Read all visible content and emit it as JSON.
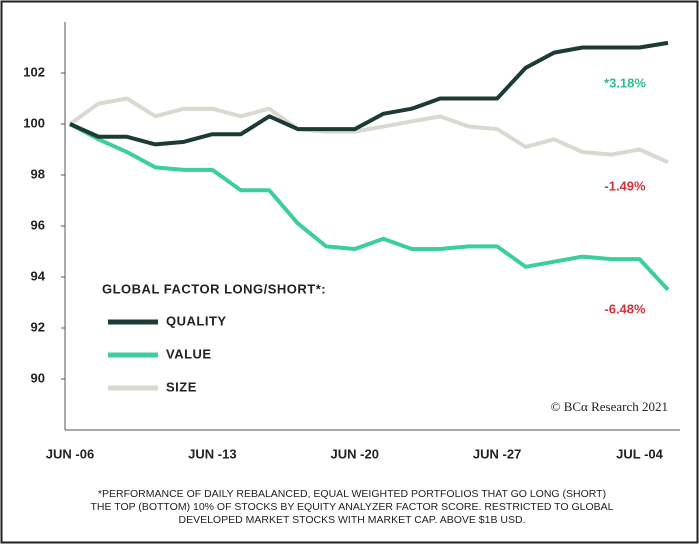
{
  "chart_data": {
    "type": "line",
    "categories": [
      "JUN -06",
      null,
      null,
      null,
      null,
      "JUN -13",
      null,
      null,
      null,
      null,
      "JUN -20",
      null,
      null,
      null,
      null,
      "JUN -27",
      null,
      null,
      null,
      null,
      "JUL -04",
      null
    ],
    "series": [
      {
        "name": "QUALITY",
        "color": "#1c3a36",
        "values": [
          100,
          99.5,
          99.5,
          99.2,
          99.3,
          99.6,
          99.6,
          100.3,
          99.8,
          99.8,
          99.8,
          100.4,
          100.6,
          101.0,
          101.0,
          101.0,
          102.2,
          102.8,
          103.0,
          103.0,
          103.0,
          103.18
        ]
      },
      {
        "name": "VALUE",
        "color": "#3ccf9a",
        "values": [
          100,
          99.4,
          98.9,
          98.3,
          98.2,
          98.2,
          97.4,
          97.4,
          96.1,
          95.2,
          95.1,
          95.5,
          95.1,
          95.1,
          95.2,
          95.2,
          94.4,
          94.6,
          94.8,
          94.7,
          94.7,
          93.5
        ]
      },
      {
        "name": "SIZE",
        "color": "#d9d9d0",
        "values": [
          100,
          100.8,
          101.0,
          100.3,
          100.6,
          100.6,
          100.3,
          100.6,
          99.8,
          99.7,
          99.7,
          99.9,
          100.1,
          100.3,
          99.9,
          99.8,
          99.1,
          99.4,
          98.9,
          98.8,
          99.0,
          98.5
        ]
      }
    ],
    "legend_title": "GLOBAL FACTOR LONG/SHORT*:",
    "annotations": [
      {
        "text": "*3.18%",
        "color": "#2dbf8a"
      },
      {
        "text": "-1.49%",
        "color": "#d0323a"
      },
      {
        "text": "-6.48%",
        "color": "#d0323a"
      }
    ],
    "source": "© BCα Research 2021",
    "footnote": [
      "*PERFORMANCE OF DAILY REBALANCED, EQUAL WEIGHTED PORTFOLIOS THAT GO LONG (SHORT)",
      "THE TOP (BOTTOM) 10% OF STOCKS BY EQUITY ANALYZER FACTOR SCORE. RESTRICTED TO GLOBAL",
      "DEVELOPED MARKET STOCKS WITH MARKET CAP. ABOVE $1B USD."
    ],
    "ylim": [
      88,
      104
    ],
    "yticks": [
      90,
      92,
      94,
      96,
      98,
      100,
      102
    ],
    "grid": false
  }
}
